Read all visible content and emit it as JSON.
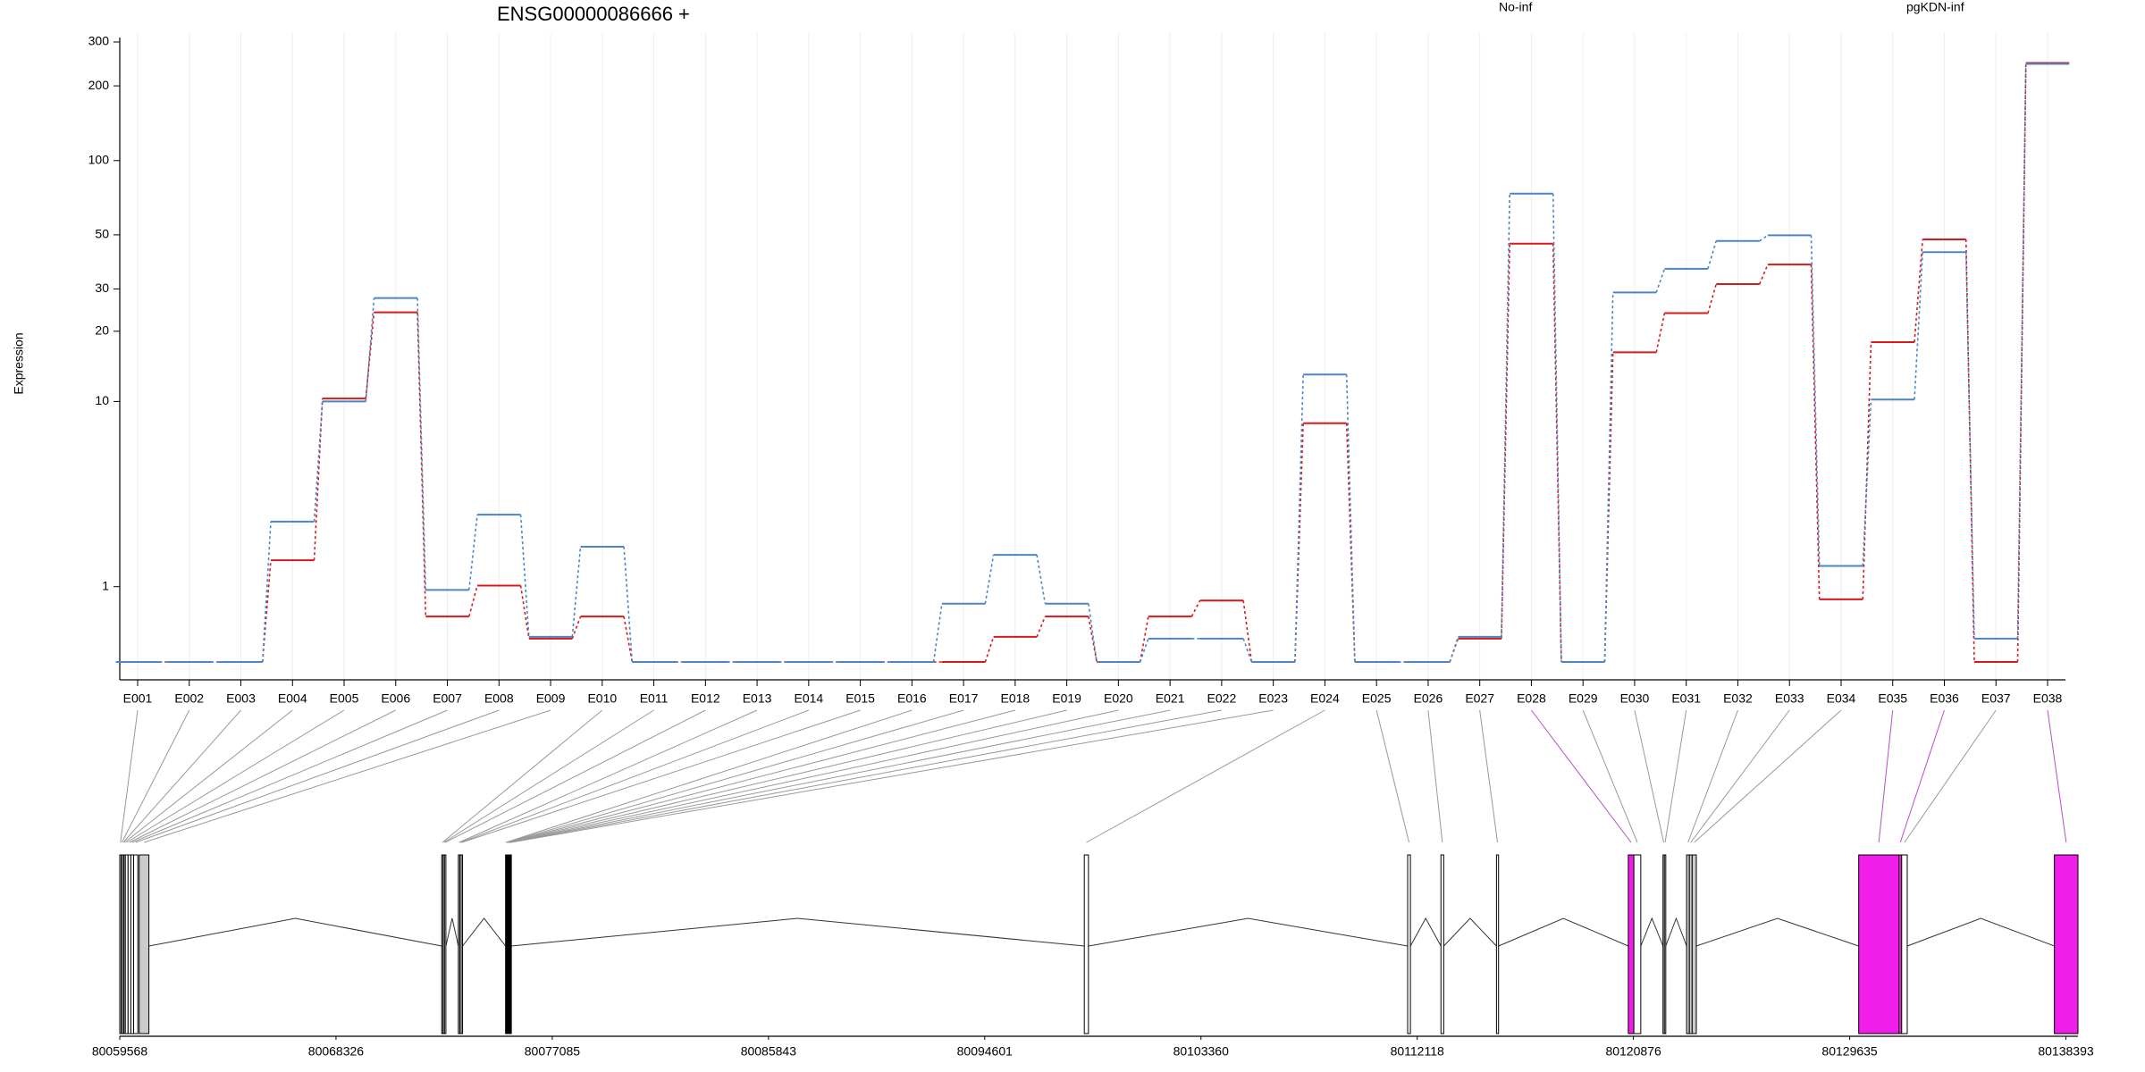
{
  "chart_data": {
    "type": "step",
    "title": "ENSG00000086666 +",
    "y_label": "Expression",
    "yscale": "log1p",
    "ylim": [
      0,
      300
    ],
    "yticks": [
      1,
      10,
      20,
      30,
      50,
      100,
      200,
      300
    ],
    "grid": true,
    "categories": [
      "E001",
      "E002",
      "E003",
      "E004",
      "E005",
      "E006",
      "E007",
      "E008",
      "E009",
      "E010",
      "E011",
      "E012",
      "E013",
      "E014",
      "E015",
      "E016",
      "E017",
      "E018",
      "E019",
      "E020",
      "E021",
      "E022",
      "E023",
      "E024",
      "E025",
      "E026",
      "E027",
      "E028",
      "E029",
      "E030",
      "E031",
      "E032",
      "E033",
      "E034",
      "E035",
      "E036",
      "E037",
      "E038"
    ],
    "series": [
      {
        "name": "No-inf",
        "color": "#d7191c",
        "values": [
          0,
          0,
          0,
          1.55,
          10.3,
          24,
          0.52,
          1.02,
          0.24,
          0.52,
          0,
          0,
          0,
          0,
          0,
          0,
          0,
          0.26,
          0.52,
          0,
          0.52,
          0.76,
          0,
          8.0,
          0,
          0,
          0.24,
          46,
          0,
          16.3,
          23.8,
          31.4,
          37.8,
          0.78,
          18,
          47.9,
          0,
          247
        ]
      },
      {
        "name": "pgKDN-inf",
        "color": "#4a86c5",
        "values": [
          0,
          0,
          0,
          2.64,
          10.0,
          27.5,
          0.94,
          2.88,
          0.26,
          1.89,
          0,
          0,
          0,
          0,
          0,
          0,
          0.71,
          1.68,
          0.71,
          0,
          0.24,
          0.24,
          0,
          13.1,
          0,
          0,
          0.26,
          73.5,
          0,
          29,
          36.3,
          47.2,
          49.8,
          1.42,
          10.2,
          42.5,
          0.24,
          245
        ]
      }
    ]
  },
  "gene_model": {
    "xlim": [
      80059568,
      80138881
    ],
    "xticks": [
      80059568,
      80068326,
      80077085,
      80085843,
      80094601,
      80103360,
      80112118,
      80120876,
      80129635,
      80138393
    ],
    "highlight_color": "#f01ee8",
    "exons": [
      [
        80059568,
        80059624
      ],
      [
        80059624,
        80059680
      ],
      [
        80059680,
        80059737
      ],
      [
        80059737,
        80059793
      ],
      [
        80059793,
        80059905
      ],
      [
        80059905,
        80060018
      ],
      [
        80060018,
        80060130
      ],
      [
        80060130,
        80060299
      ],
      [
        80060355,
        80060748
      ],
      [
        80072609,
        80072665
      ],
      [
        80072665,
        80072721
      ],
      [
        80072721,
        80072777
      ],
      [
        80073283,
        80073339
      ],
      [
        80073339,
        80073396
      ],
      [
        80073396,
        80073452
      ],
      [
        80075194,
        80075222
      ],
      [
        80075222,
        80075251
      ],
      [
        80075251,
        80075279
      ],
      [
        80075279,
        80075307
      ],
      [
        80075307,
        80075335
      ],
      [
        80075335,
        80075363
      ],
      [
        80075363,
        80075392
      ],
      [
        80075392,
        80075420
      ],
      [
        80098634,
        80098803
      ],
      [
        80111731,
        80111843
      ],
      [
        80113080,
        80113193
      ],
      [
        80115329,
        80115413
      ],
      [
        80120668,
        80120893
      ],
      [
        80120893,
        80121174
      ],
      [
        80122074,
        80122130
      ],
      [
        80122130,
        80122186
      ],
      [
        80123029,
        80123142
      ],
      [
        80123142,
        80123254
      ],
      [
        80123254,
        80123423
      ],
      [
        80130000,
        80131629
      ],
      [
        80131629,
        80131741
      ],
      [
        80131741,
        80131966
      ],
      [
        80137926,
        80138881
      ]
    ],
    "exon_colors": [
      "#ffffff",
      "#ffffff",
      "#ffffff",
      "#ffffff",
      "#ffffff",
      "#ffffff",
      "#ffffff",
      "#ffffff",
      "#cccccc",
      "#ffffff",
      "#ffffff",
      "#ffffff",
      "#ffffff",
      "#ffffff",
      "#ffffff",
      "#ffffff",
      "#ffffff",
      "#ffffff",
      "#ffffff",
      "#ffffff",
      "#ffffff",
      "#ffffff",
      "#ffffff",
      "#ffffff",
      "#ffffff",
      "#ffffff",
      "#ffffff",
      "#f01ee8",
      "#ffffff",
      "#ffffff",
      "#ffffff",
      "#cccccc",
      "#cccccc",
      "#cccccc",
      "#f01ee8",
      "#f01ee8",
      "#ffffff",
      "#f01ee8"
    ]
  }
}
